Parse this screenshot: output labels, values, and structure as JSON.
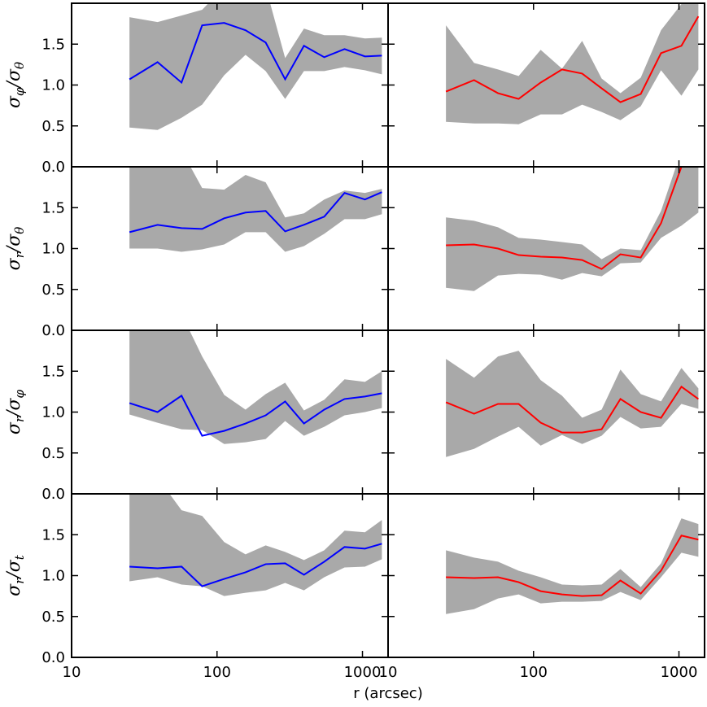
{
  "xlabel": "r (arcsec)",
  "chart_data": [
    {
      "type": "line",
      "log_x": true,
      "xlim": [
        10,
        1500
      ],
      "xticks": [
        10,
        100,
        1000
      ],
      "show_xtick_labels": false,
      "ylim": [
        0,
        2
      ],
      "yticks": [
        {
          "value": 0,
          "label": "0.0"
        },
        {
          "value": 0.5,
          "label": "0.5"
        },
        {
          "value": 1,
          "label": "1.0"
        },
        {
          "value": 1.5,
          "label": "1.5"
        }
      ],
      "ylabel": [
        {
          "text": "σ",
          "sub": "φ"
        },
        {
          "text": "/σ",
          "sub": "θ"
        }
      ],
      "x": [
        25,
        39,
        57,
        79,
        112,
        157,
        216,
        294,
        396,
        546,
        753,
        1040,
        1360
      ],
      "series": [
        {
          "color": "#0000ff",
          "band_color": "#a9a9a9",
          "values": [
            1.07,
            1.28,
            1.03,
            1.73,
            1.76,
            1.67,
            1.52,
            1.07,
            1.48,
            1.34,
            1.44,
            1.35,
            1.36
          ],
          "upper": [
            1.83,
            1.77,
            1.85,
            1.92,
            2.2,
            2.2,
            2.2,
            1.33,
            1.69,
            1.61,
            1.61,
            1.57,
            1.58
          ],
          "lower": [
            0.48,
            0.45,
            0.6,
            0.76,
            1.12,
            1.37,
            1.17,
            0.83,
            1.17,
            1.17,
            1.22,
            1.18,
            1.13
          ]
        }
      ]
    },
    {
      "type": "line",
      "log_x": true,
      "xlim": [
        10,
        1500
      ],
      "xticks": [
        10,
        100,
        1000
      ],
      "show_xtick_labels": false,
      "ylim": [
        0,
        2
      ],
      "yticks": [
        0,
        0.5,
        1,
        1.5
      ],
      "x": [
        25,
        39,
        57,
        79,
        112,
        157,
        216,
        294,
        396,
        546,
        753,
        1040,
        1360
      ],
      "series": [
        {
          "color": "#ff0000",
          "band_color": "#a9a9a9",
          "values": [
            0.92,
            1.06,
            0.9,
            0.83,
            1.03,
            1.19,
            1.14,
            0.96,
            0.79,
            0.89,
            1.39,
            1.48,
            1.84
          ],
          "upper": [
            1.73,
            1.27,
            1.19,
            1.11,
            1.43,
            1.2,
            1.54,
            1.08,
            0.9,
            1.09,
            1.67,
            1.99,
            2.1
          ],
          "lower": [
            0.55,
            0.53,
            0.53,
            0.52,
            0.64,
            0.64,
            0.76,
            0.67,
            0.57,
            0.74,
            1.18,
            0.87,
            1.19
          ]
        }
      ]
    },
    {
      "type": "line",
      "log_x": true,
      "xlim": [
        10,
        1500
      ],
      "xticks": [
        10,
        100,
        1000
      ],
      "show_xtick_labels": false,
      "ylim": [
        0,
        2
      ],
      "yticks": [
        {
          "value": 0,
          "label": "0.0"
        },
        {
          "value": 0.5,
          "label": "0.5"
        },
        {
          "value": 1,
          "label": "1.0"
        },
        {
          "value": 1.5,
          "label": "1.5"
        }
      ],
      "ylabel": [
        {
          "text": "σ",
          "sub": "r"
        },
        {
          "text": "/σ",
          "sub": "θ"
        }
      ],
      "x": [
        25,
        39,
        57,
        79,
        112,
        157,
        216,
        294,
        396,
        546,
        753,
        1040,
        1360
      ],
      "series": [
        {
          "color": "#0000ff",
          "band_color": "#a9a9a9",
          "values": [
            1.2,
            1.29,
            1.25,
            1.24,
            1.37,
            1.44,
            1.46,
            1.21,
            1.29,
            1.39,
            1.68,
            1.6,
            1.69
          ],
          "upper": [
            2.2,
            2.2,
            2.2,
            1.74,
            1.72,
            1.9,
            1.81,
            1.38,
            1.43,
            1.6,
            1.71,
            1.68,
            1.73
          ],
          "lower": [
            1.0,
            1.0,
            0.96,
            0.99,
            1.05,
            1.2,
            1.2,
            0.96,
            1.03,
            1.18,
            1.36,
            1.36,
            1.42
          ]
        }
      ]
    },
    {
      "type": "line",
      "log_x": true,
      "xlim": [
        10,
        1500
      ],
      "xticks": [
        10,
        100,
        1000
      ],
      "show_xtick_labels": false,
      "ylim": [
        0,
        2
      ],
      "yticks": [
        0,
        0.5,
        1,
        1.5
      ],
      "x": [
        25,
        39,
        57,
        79,
        112,
        157,
        216,
        294,
        396,
        546,
        753,
        1040,
        1360
      ],
      "series": [
        {
          "color": "#ff0000",
          "band_color": "#a9a9a9",
          "values": [
            1.04,
            1.05,
            1.0,
            0.92,
            0.9,
            0.89,
            0.86,
            0.75,
            0.93,
            0.89,
            1.31,
            2.0,
            2.2
          ],
          "upper": [
            1.38,
            1.34,
            1.26,
            1.13,
            1.11,
            1.08,
            1.05,
            0.87,
            1.0,
            0.98,
            1.46,
            2.2,
            2.2
          ],
          "lower": [
            0.52,
            0.48,
            0.67,
            0.69,
            0.68,
            0.62,
            0.7,
            0.66,
            0.82,
            0.83,
            1.13,
            1.28,
            1.44
          ]
        }
      ]
    },
    {
      "type": "line",
      "log_x": true,
      "xlim": [
        10,
        1500
      ],
      "xticks": [
        10,
        100,
        1000
      ],
      "show_xtick_labels": false,
      "ylim": [
        0,
        2
      ],
      "yticks": [
        {
          "value": 0,
          "label": "0.0"
        },
        {
          "value": 0.5,
          "label": "0.5"
        },
        {
          "value": 1,
          "label": "1.0"
        },
        {
          "value": 1.5,
          "label": "1.5"
        }
      ],
      "ylabel": [
        {
          "text": "σ",
          "sub": "r"
        },
        {
          "text": "/σ",
          "sub": "φ"
        }
      ],
      "x": [
        25,
        39,
        57,
        79,
        112,
        157,
        216,
        294,
        396,
        546,
        753,
        1040,
        1360
      ],
      "series": [
        {
          "color": "#0000ff",
          "band_color": "#a9a9a9",
          "values": [
            1.11,
            1.0,
            1.2,
            0.71,
            0.77,
            0.86,
            0.96,
            1.13,
            0.86,
            1.03,
            1.16,
            1.19,
            1.23
          ],
          "upper": [
            2.2,
            2.2,
            2.2,
            1.68,
            1.21,
            1.03,
            1.22,
            1.36,
            1.02,
            1.15,
            1.4,
            1.37,
            1.5
          ],
          "lower": [
            0.97,
            0.87,
            0.79,
            0.78,
            0.61,
            0.63,
            0.67,
            0.89,
            0.71,
            0.82,
            0.96,
            1.0,
            1.05
          ]
        }
      ]
    },
    {
      "type": "line",
      "log_x": true,
      "xlim": [
        10,
        1500
      ],
      "xticks": [
        10,
        100,
        1000
      ],
      "show_xtick_labels": false,
      "ylim": [
        0,
        2
      ],
      "yticks": [
        0,
        0.5,
        1,
        1.5
      ],
      "x": [
        25,
        39,
        57,
        79,
        112,
        157,
        216,
        294,
        396,
        546,
        753,
        1040,
        1360
      ],
      "series": [
        {
          "color": "#ff0000",
          "band_color": "#a9a9a9",
          "values": [
            1.12,
            0.98,
            1.1,
            1.1,
            0.87,
            0.75,
            0.75,
            0.79,
            1.16,
            1.0,
            0.93,
            1.31,
            1.16
          ],
          "upper": [
            1.65,
            1.42,
            1.68,
            1.75,
            1.39,
            1.2,
            0.93,
            1.03,
            1.52,
            1.22,
            1.13,
            1.54,
            1.29
          ],
          "lower": [
            0.45,
            0.55,
            0.7,
            0.82,
            0.59,
            0.72,
            0.61,
            0.71,
            0.94,
            0.8,
            0.82,
            1.1,
            1.04
          ]
        }
      ]
    },
    {
      "type": "line",
      "log_x": true,
      "xlim": [
        10,
        1500
      ],
      "xticks": [
        10,
        100,
        1000
      ],
      "show_xtick_labels": true,
      "ylim": [
        0,
        2
      ],
      "yticks": [
        {
          "value": 0,
          "label": "0.0"
        },
        {
          "value": 0.5,
          "label": "0.5"
        },
        {
          "value": 1,
          "label": "1.0"
        },
        {
          "value": 1.5,
          "label": "1.5"
        }
      ],
      "ylabel": [
        {
          "text": "σ",
          "sub": "r"
        },
        {
          "text": "/σ",
          "sub": "t"
        }
      ],
      "x": [
        25,
        39,
        57,
        79,
        112,
        157,
        216,
        294,
        396,
        546,
        753,
        1040,
        1360
      ],
      "series": [
        {
          "color": "#0000ff",
          "band_color": "#a9a9a9",
          "values": [
            1.11,
            1.09,
            1.11,
            0.87,
            0.96,
            1.04,
            1.14,
            1.15,
            1.01,
            1.17,
            1.35,
            1.33,
            1.39
          ],
          "upper": [
            2.2,
            2.2,
            1.8,
            1.73,
            1.41,
            1.26,
            1.37,
            1.29,
            1.19,
            1.31,
            1.55,
            1.53,
            1.68
          ],
          "lower": [
            0.93,
            0.98,
            0.89,
            0.87,
            0.75,
            0.79,
            0.82,
            0.91,
            0.82,
            0.98,
            1.1,
            1.11,
            1.2
          ]
        }
      ]
    },
    {
      "type": "line",
      "log_x": true,
      "xlim": [
        10,
        1500
      ],
      "xticks": [
        10,
        100,
        1000
      ],
      "show_xtick_labels": true,
      "ylim": [
        0,
        2
      ],
      "yticks": [
        0,
        0.5,
        1,
        1.5
      ],
      "x": [
        25,
        39,
        57,
        79,
        112,
        157,
        216,
        294,
        396,
        546,
        753,
        1040,
        1360
      ],
      "series": [
        {
          "color": "#ff0000",
          "band_color": "#a9a9a9",
          "values": [
            0.98,
            0.97,
            0.98,
            0.92,
            0.81,
            0.77,
            0.75,
            0.76,
            0.94,
            0.78,
            1.06,
            1.49,
            1.44
          ],
          "upper": [
            1.31,
            1.22,
            1.17,
            1.06,
            0.98,
            0.89,
            0.88,
            0.89,
            1.08,
            0.86,
            1.15,
            1.7,
            1.63
          ],
          "lower": [
            0.53,
            0.59,
            0.72,
            0.77,
            0.66,
            0.68,
            0.68,
            0.69,
            0.8,
            0.7,
            0.98,
            1.28,
            1.23
          ]
        }
      ]
    }
  ]
}
